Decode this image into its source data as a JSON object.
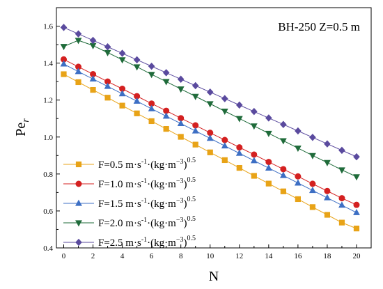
{
  "chart_data": {
    "type": "line",
    "annotation": "BH-250  Z=0.5 m",
    "xlabel": "N",
    "ylabel_main": "Pe",
    "ylabel_sub": "r",
    "xlim": [
      -0.5,
      21
    ],
    "ylim": [
      0.4,
      1.7
    ],
    "xticks": [
      0,
      2,
      4,
      6,
      8,
      10,
      12,
      14,
      16,
      18,
      20
    ],
    "yticks": [
      0.4,
      0.6,
      0.8,
      1.0,
      1.2,
      1.4,
      1.6
    ],
    "ytick_labels": [
      "0.4",
      "0.6",
      "0.8",
      "1.0",
      "1.2",
      "1.4",
      "1.6"
    ],
    "grid": false,
    "legend_position": "bottom-left",
    "x": [
      0,
      1,
      2,
      3,
      4,
      5,
      6,
      7,
      8,
      9,
      10,
      11,
      12,
      13,
      14,
      15,
      16,
      17,
      18,
      19,
      20
    ],
    "series": [
      {
        "name": "F=0.5 m·s-1·(kg·m-3)0.5",
        "label_parts": [
          "F=0.5 m·s",
          "-1",
          "·(kg·m",
          "−3",
          ")",
          "0.5"
        ],
        "marker": "square",
        "color": "#e8a317",
        "line_color": "#e8a317",
        "values": [
          1.34,
          1.297,
          1.255,
          1.213,
          1.17,
          1.128,
          1.086,
          1.044,
          1.001,
          0.959,
          0.917,
          0.875,
          0.833,
          0.79,
          0.748,
          0.706,
          0.664,
          0.621,
          0.579,
          0.537,
          0.505
        ]
      },
      {
        "name": "F=1.0 m·s-1·(kg·m-3)0.5",
        "label_parts": [
          "F=1.0 m·s",
          "-1",
          "·(kg·m",
          "−3",
          ")",
          "0.5"
        ],
        "marker": "circle",
        "color": "#d42020",
        "line_color": "#d42020",
        "values": [
          1.42,
          1.38,
          1.34,
          1.3,
          1.261,
          1.221,
          1.181,
          1.142,
          1.102,
          1.063,
          1.023,
          0.984,
          0.944,
          0.905,
          0.865,
          0.826,
          0.787,
          0.747,
          0.708,
          0.669,
          0.633
        ]
      },
      {
        "name": "F=1.5 m·s-1·(kg·m-3)0.5",
        "label_parts": [
          "F=1.5 m·s",
          "-1",
          "·(kg·m",
          "−3",
          ")",
          "0.5"
        ],
        "marker": "triangle-up",
        "color": "#3d6fc4",
        "line_color": "#3d6fc4",
        "values": [
          1.395,
          1.354,
          1.314,
          1.274,
          1.234,
          1.194,
          1.153,
          1.113,
          1.073,
          1.033,
          0.993,
          0.952,
          0.912,
          0.872,
          0.832,
          0.792,
          0.751,
          0.711,
          0.671,
          0.631,
          0.591
        ]
      },
      {
        "name": "F=2.0 m·s-1·(kg·m-3)0.5",
        "label_parts": [
          "F=2.0 m·s",
          "-1",
          "·(kg·m",
          "−3",
          ")",
          "0.5"
        ],
        "marker": "triangle-down",
        "color": "#1f6b3a",
        "line_color": "#1f6b3a",
        "values": [
          1.49,
          1.523,
          1.495,
          1.457,
          1.418,
          1.38,
          1.339,
          1.3,
          1.26,
          1.22,
          1.18,
          1.14,
          1.1,
          1.06,
          1.02,
          0.98,
          0.94,
          0.9,
          0.862,
          0.822,
          0.785
        ]
      },
      {
        "name": "F=2.5 m·s-1·(kg·m-3)0.5",
        "label_parts": [
          "F=2.5 m·s",
          "-1",
          "·(kg·m",
          "−3",
          ")",
          "0.5"
        ],
        "marker": "diamond",
        "color": "#5a4a9e",
        "line_color": "#5a4a9e",
        "values": [
          1.593,
          1.558,
          1.523,
          1.488,
          1.453,
          1.418,
          1.383,
          1.348,
          1.313,
          1.278,
          1.243,
          1.208,
          1.173,
          1.138,
          1.103,
          1.068,
          1.033,
          0.998,
          0.963,
          0.928,
          0.893
        ]
      }
    ]
  }
}
